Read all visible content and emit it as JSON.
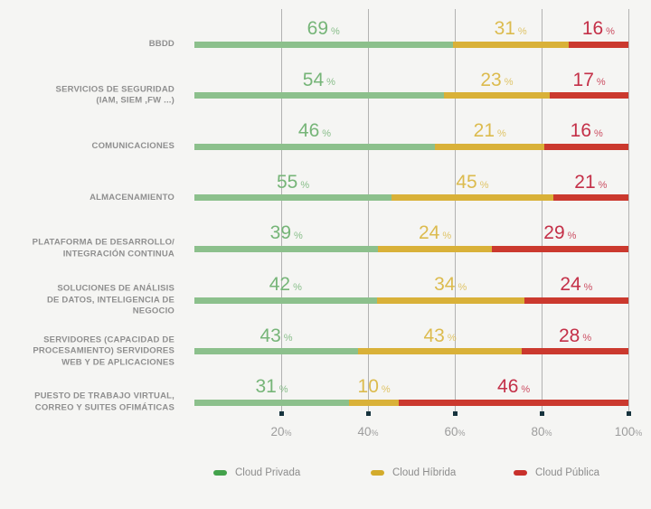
{
  "chart_data": {
    "type": "bar",
    "orientation": "horizontal",
    "stacked": true,
    "normalized_to_full_width": true,
    "title": "",
    "xlabel": "",
    "ylabel": "",
    "unit": "%",
    "categories": [
      [
        "BBDD"
      ],
      [
        "SERVICIOS DE SEGURIDAD",
        "(IAM, SIEM ,FW ...)"
      ],
      [
        "COMUNICACIONES"
      ],
      [
        "ALMACENAMIENTO"
      ],
      [
        "PLATAFORMA DE DESARROLLO/",
        "INTEGRACIÓN CONTINUA"
      ],
      [
        "SOLUCIONES DE ANÁLISIS",
        "DE DATOS, INTELIGENCIA DE",
        "NEGOCIO"
      ],
      [
        "SERVIDORES (CAPACIDAD DE",
        "PROCESAMIENTO) SERVIDORES",
        "WEB Y DE APLICACIONES"
      ],
      [
        "PUESTO DE TRABAJO VIRTUAL,",
        "CORREO Y SUITES OFIMÁTICAS"
      ]
    ],
    "series": [
      {
        "name": "Cloud Privada",
        "bar_color": "#8cc08c",
        "label_color": "#76b578",
        "values": [
          69,
          54,
          46,
          55,
          39,
          42,
          43,
          31
        ]
      },
      {
        "name": "Cloud Híbrida",
        "bar_color": "#d9b138",
        "label_color": "#dcbb4e",
        "values": [
          31,
          23,
          21,
          45,
          24,
          34,
          43,
          10
        ]
      },
      {
        "name": "Cloud Pública",
        "bar_color": "#cb392e",
        "label_color": "#c43048",
        "values": [
          16,
          17,
          16,
          21,
          29,
          24,
          28,
          46
        ]
      }
    ],
    "x_ticks": [
      {
        "value": 20,
        "label": "20",
        "suffix": "%"
      },
      {
        "value": 40,
        "label": "40",
        "suffix": "%"
      },
      {
        "value": 60,
        "label": "60",
        "suffix": "%"
      },
      {
        "value": 80,
        "label": "80",
        "suffix": "%"
      },
      {
        "value": 100,
        "label": "100",
        "suffix": "%"
      }
    ],
    "grid": true,
    "legend_position": "bottom"
  },
  "legend": {
    "items": [
      {
        "label": "Cloud Privada",
        "color": "#43a24b"
      },
      {
        "label": "Cloud Híbrida",
        "color": "#d3ab2b"
      },
      {
        "label": "Cloud Pública",
        "color": "#c8302b"
      }
    ]
  },
  "colors": {
    "background": "#f5f5f3",
    "gridline": "#b2b2b2",
    "tick_square": "#16333d",
    "category_text": "#8f8f8f",
    "tick_text": "#9d9d9d",
    "legend_text": "#8d8d8d"
  }
}
